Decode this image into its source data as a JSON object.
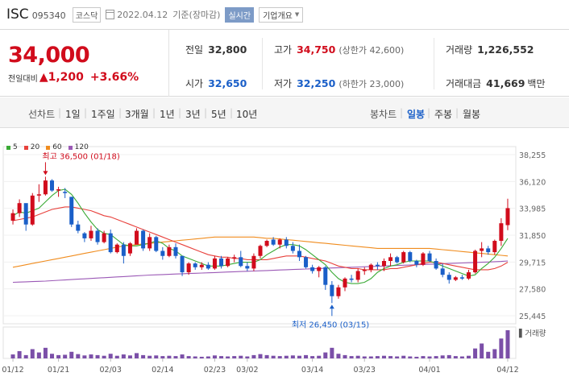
{
  "header": {
    "name": "ISC",
    "code": "095340",
    "market": "코스닥",
    "date": "2022.04.12",
    "basis": "기준(장마감)",
    "live_label": "실시간",
    "info_label": "기업개요"
  },
  "quote": {
    "price": "34,000",
    "change_label": "전일대비",
    "change": "1,200",
    "change_pct": "+3.66%",
    "prev_label": "전일",
    "prev": "32,800",
    "high_label": "고가",
    "high": "34,750",
    "upper_limit": "(상한가 42,600)",
    "volume_label": "거래량",
    "volume": "1,226,552",
    "open_label": "시가",
    "open": "32,650",
    "low_label": "저가",
    "low": "32,250",
    "lower_limit": "(하한가 23,000)",
    "value_label": "거래대금",
    "value": "41,669",
    "value_unit": "백만"
  },
  "tabs": {
    "line_chart": "선차트",
    "periods": [
      "1일",
      "1주일",
      "3개월",
      "1년",
      "3년",
      "5년",
      "10년"
    ],
    "candle_chart": "봉차트",
    "candle_periods": [
      "일봉",
      "주봉",
      "월봉"
    ],
    "selected_candle": "일봉"
  },
  "colors": {
    "up": "#d10c1c",
    "down": "#1a5fc8",
    "ma5": "#3aaa35",
    "ma20": "#e8413c",
    "ma60": "#f08c1e",
    "ma120": "#9b59b6"
  },
  "chart_data": {
    "type": "candlestick",
    "legend": [
      {
        "name": "5",
        "color": "#3aaa35"
      },
      {
        "name": "20",
        "color": "#e8413c"
      },
      {
        "name": "60",
        "color": "#f08c1e"
      },
      {
        "name": "120",
        "color": "#9b59b6"
      }
    ],
    "yticks": [
      "38,255",
      "36,120",
      "33,985",
      "31,850",
      "29,715",
      "27,580",
      "25,445"
    ],
    "ylim": [
      25445,
      38255
    ],
    "xticks": [
      "01/12",
      "01/21",
      "02/03",
      "02/14",
      "02/23",
      "03/02",
      "03/14",
      "03/23",
      "04/01",
      "04/12"
    ],
    "annotations": {
      "max_label": "최고 36,500 (01/18)",
      "min_label": "최저 26,450 (03/15)"
    },
    "volume_label": "거래량",
    "candles": [
      [
        33000,
        33900,
        32700,
        33600
      ],
      [
        33600,
        34700,
        33300,
        34400
      ],
      [
        34400,
        34300,
        32200,
        32700
      ],
      [
        32700,
        35200,
        32600,
        35000
      ],
      [
        35000,
        35900,
        34500,
        35100
      ],
      [
        35100,
        36500,
        35000,
        36200
      ],
      [
        36200,
        36300,
        35300,
        35400
      ],
      [
        35400,
        35700,
        34900,
        35500
      ],
      [
        35300,
        35600,
        34800,
        35200
      ],
      [
        34900,
        34900,
        32500,
        32700
      ],
      [
        32700,
        33000,
        32000,
        32200
      ],
      [
        32000,
        32100,
        31300,
        31600
      ],
      [
        31600,
        32600,
        31400,
        32200
      ],
      [
        32200,
        32400,
        31100,
        31300
      ],
      [
        31300,
        32200,
        31200,
        32000
      ],
      [
        32000,
        32300,
        30400,
        30500
      ],
      [
        30500,
        31200,
        30400,
        31100
      ],
      [
        31100,
        31300,
        29600,
        30200
      ],
      [
        30400,
        31300,
        30200,
        31200
      ],
      [
        31100,
        32400,
        31100,
        32200
      ],
      [
        32200,
        32300,
        30600,
        30800
      ],
      [
        30800,
        32000,
        30600,
        31700
      ],
      [
        31700,
        31800,
        30500,
        30600
      ],
      [
        30600,
        30900,
        29900,
        30200
      ],
      [
        30200,
        31100,
        30100,
        30900
      ],
      [
        30900,
        31200,
        30000,
        30200
      ],
      [
        30200,
        30200,
        28600,
        28900
      ],
      [
        28900,
        29700,
        28700,
        29600
      ],
      [
        29600,
        29700,
        29100,
        29300
      ],
      [
        29300,
        29700,
        29100,
        29500
      ],
      [
        29500,
        29700,
        29100,
        29200
      ],
      [
        29200,
        30200,
        29100,
        30000
      ],
      [
        30000,
        30200,
        29200,
        29400
      ],
      [
        29400,
        30100,
        29300,
        30000
      ],
      [
        30000,
        30300,
        29700,
        30100
      ],
      [
        30100,
        30600,
        29300,
        29400
      ],
      [
        29400,
        29700,
        29000,
        29200
      ],
      [
        29200,
        30400,
        29000,
        30200
      ],
      [
        30200,
        31100,
        30000,
        31000
      ],
      [
        31000,
        31500,
        30900,
        31400
      ],
      [
        31500,
        31700,
        31000,
        31100
      ],
      [
        31100,
        31600,
        30800,
        31500
      ],
      [
        31500,
        31700,
        30800,
        31000
      ],
      [
        31000,
        31300,
        30400,
        30600
      ],
      [
        30600,
        31100,
        29800,
        30100
      ],
      [
        30100,
        30200,
        29200,
        29300
      ],
      [
        29300,
        29500,
        28800,
        29000
      ],
      [
        29000,
        29400,
        28500,
        29300
      ],
      [
        29300,
        29400,
        27500,
        27900
      ],
      [
        27900,
        28200,
        26450,
        27000
      ],
      [
        27000,
        27900,
        26800,
        27700
      ],
      [
        27700,
        28500,
        27400,
        28400
      ],
      [
        28400,
        28700,
        28100,
        28300
      ],
      [
        28300,
        29200,
        28100,
        29000
      ],
      [
        29000,
        29300,
        28700,
        29100
      ],
      [
        29100,
        29600,
        28900,
        29500
      ],
      [
        29500,
        29700,
        29100,
        29400
      ],
      [
        29400,
        30000,
        29000,
        29800
      ],
      [
        29800,
        30400,
        29400,
        30100
      ],
      [
        30100,
        30200,
        29600,
        29700
      ],
      [
        29700,
        30600,
        29600,
        30500
      ],
      [
        30500,
        30600,
        29700,
        29800
      ],
      [
        29800,
        29900,
        29300,
        29500
      ],
      [
        29500,
        30500,
        29400,
        30400
      ],
      [
        30400,
        30600,
        29700,
        29800
      ],
      [
        29800,
        30000,
        29100,
        29200
      ],
      [
        29200,
        29600,
        28500,
        28700
      ],
      [
        28700,
        28900,
        28000,
        28300
      ],
      [
        28300,
        28600,
        28200,
        28500
      ],
      [
        28500,
        28700,
        28300,
        28400
      ],
      [
        28400,
        29100,
        28300,
        28900
      ],
      [
        28900,
        30700,
        28800,
        30600
      ],
      [
        30600,
        31300,
        30100,
        30800
      ],
      [
        30800,
        31000,
        30300,
        30500
      ],
      [
        30500,
        31500,
        30300,
        31400
      ],
      [
        31400,
        33200,
        31000,
        32800
      ],
      [
        32650,
        34750,
        32250,
        34000
      ]
    ],
    "volumes": [
      0.12,
      0.22,
      0.1,
      0.28,
      0.18,
      0.32,
      0.14,
      0.1,
      0.11,
      0.2,
      0.13,
      0.09,
      0.12,
      0.1,
      0.08,
      0.14,
      0.08,
      0.12,
      0.09,
      0.16,
      0.1,
      0.08,
      0.09,
      0.07,
      0.08,
      0.07,
      0.12,
      0.07,
      0.06,
      0.05,
      0.06,
      0.09,
      0.07,
      0.06,
      0.07,
      0.08,
      0.06,
      0.1,
      0.13,
      0.1,
      0.08,
      0.07,
      0.08,
      0.09,
      0.08,
      0.1,
      0.07,
      0.08,
      0.18,
      0.32,
      0.14,
      0.1,
      0.07,
      0.08,
      0.06,
      0.06,
      0.07,
      0.08,
      0.07,
      0.06,
      0.08,
      0.06,
      0.05,
      0.07,
      0.06,
      0.07,
      0.09,
      0.1,
      0.07,
      0.06,
      0.08,
      0.3,
      0.45,
      0.2,
      0.28,
      0.6,
      0.85
    ],
    "ma5": [
      33400,
      33700,
      33600,
      33800,
      34000,
      34500,
      35000,
      35400,
      35500,
      35100,
      34400,
      33600,
      32900,
      32300,
      32000,
      31900,
      31500,
      31100,
      31000,
      31000,
      31100,
      31200,
      31400,
      31200,
      30800,
      30600,
      30200,
      30000,
      29800,
      29600,
      29400,
      29400,
      29400,
      29500,
      29600,
      29700,
      29700,
      29700,
      29900,
      30300,
      30600,
      30900,
      31100,
      31100,
      31000,
      30700,
      30300,
      29900,
      29500,
      28900,
      28400,
      28100,
      28000,
      28000,
      28100,
      28400,
      28900,
      29200,
      29400,
      29500,
      29700,
      29800,
      29800,
      29800,
      29800,
      29600,
      29400,
      29200,
      29000,
      28800,
      28600,
      28700,
      29200,
      29600,
      30100,
      30800,
      31600
    ],
    "ma20": [
      33000,
      33100,
      33200,
      33300,
      33500,
      33700,
      33900,
      34000,
      34100,
      34100,
      34000,
      33900,
      33800,
      33600,
      33400,
      33300,
      33100,
      32900,
      32700,
      32500,
      32300,
      32100,
      31900,
      31700,
      31500,
      31300,
      31100,
      30900,
      30700,
      30500,
      30300,
      30200,
      30100,
      30100,
      30000,
      30000,
      29900,
      29900,
      29900,
      29900,
      30000,
      30100,
      30200,
      30200,
      30200,
      30100,
      30000,
      29900,
      29800,
      29600,
      29400,
      29300,
      29200,
      29200,
      29100,
      29100,
      29100,
      29100,
      29200,
      29200,
      29300,
      29400,
      29500,
      29600,
      29700,
      29700,
      29600,
      29500,
      29400,
      29300,
      29200,
      29100,
      29100,
      29100,
      29200,
      29400,
      29700
    ],
    "ma60": [
      29300,
      29400,
      29500,
      29600,
      29700,
      29800,
      29900,
      30000,
      30100,
      30200,
      30300,
      30400,
      30500,
      30600,
      30700,
      30800,
      30900,
      31000,
      31050,
      31100,
      31150,
      31200,
      31250,
      31300,
      31350,
      31400,
      31450,
      31500,
      31550,
      31600,
      31650,
      31700,
      31700,
      31700,
      31700,
      31700,
      31700,
      31700,
      31650,
      31600,
      31600,
      31550,
      31500,
      31450,
      31400,
      31350,
      31300,
      31250,
      31200,
      31150,
      31100,
      31050,
      31000,
      30950,
      30900,
      30850,
      30800,
      30800,
      30800,
      30800,
      30800,
      30800,
      30800,
      30800,
      30800,
      30750,
      30700,
      30650,
      30600,
      30550,
      30500,
      30450,
      30400,
      30350,
      30300,
      30250,
      30200
    ],
    "ma120": [
      28100,
      28120,
      28140,
      28160,
      28180,
      28200,
      28230,
      28260,
      28290,
      28320,
      28350,
      28380,
      28410,
      28440,
      28470,
      28500,
      28530,
      28560,
      28590,
      28620,
      28650,
      28680,
      28700,
      28720,
      28740,
      28760,
      28780,
      28800,
      28820,
      28840,
      28860,
      28880,
      28900,
      28920,
      28940,
      28960,
      28980,
      29000,
      29020,
      29040,
      29060,
      29080,
      29100,
      29120,
      29140,
      29160,
      29180,
      29200,
      29220,
      29240,
      29260,
      29280,
      29300,
      29320,
      29340,
      29360,
      29380,
      29400,
      29420,
      29440,
      29460,
      29480,
      29500,
      29520,
      29540,
      29560,
      29580,
      29600,
      29620,
      29640,
      29660,
      29680,
      29700,
      29720,
      29740,
      29760,
      29800
    ]
  }
}
